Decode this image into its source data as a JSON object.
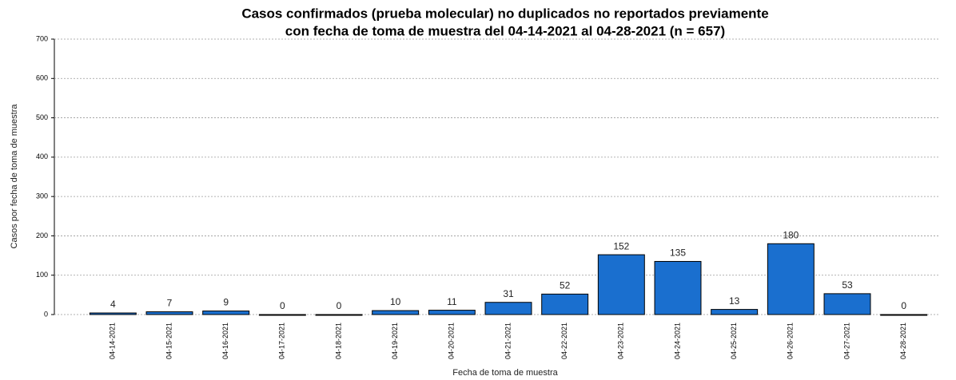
{
  "chart_data": {
    "type": "bar",
    "title": [
      "Casos confirmados (prueba molecular) no duplicados no reportados previamente",
      "con fecha de toma de muestra del 04-14-2021 al 04-28-2021 (n = 657)"
    ],
    "x_label": "Fecha de toma de muestra",
    "y_label": "Casos por fecha de toma de muestra",
    "categories": [
      "04-14-2021",
      "04-15-2021",
      "04-16-2021",
      "04-17-2021",
      "04-18-2021",
      "04-19-2021",
      "04-20-2021",
      "04-21-2021",
      "04-22-2021",
      "04-23-2021",
      "04-24-2021",
      "04-25-2021",
      "04-26-2021",
      "04-27-2021",
      "04-28-2021"
    ],
    "values": [
      4,
      7,
      9,
      0,
      0,
      10,
      11,
      31,
      52,
      152,
      135,
      13,
      180,
      53,
      0
    ],
    "color": "#1a6fcf",
    "ylim": [
      0,
      700
    ],
    "yticks": [
      0,
      100,
      200,
      300,
      400,
      500,
      600,
      700
    ],
    "grid": true
  }
}
